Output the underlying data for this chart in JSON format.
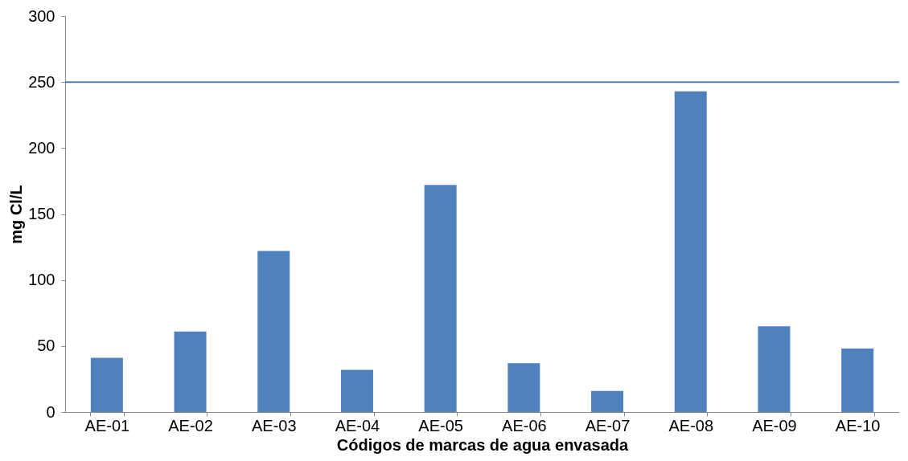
{
  "chart_data": {
    "type": "bar",
    "xlabel": "Códigos de marcas de agua envasada",
    "ylabel": "mg Cl/L",
    "categories": [
      "AE-01",
      "AE-02",
      "AE-03",
      "AE-04",
      "AE-05",
      "AE-06",
      "AE-07",
      "AE-08",
      "AE-09",
      "AE-10"
    ],
    "values": [
      41,
      61,
      122,
      32,
      172,
      37,
      16,
      243,
      65,
      48
    ],
    "color": "#4f81bd",
    "ylim": [
      0,
      300
    ],
    "yticks": [
      0,
      50,
      100,
      150,
      200,
      250,
      300
    ],
    "grid": false,
    "ref_lines": [
      {
        "axis": "y",
        "value": 250,
        "color": "#4a7ebb",
        "line_style": "solid"
      }
    ]
  }
}
